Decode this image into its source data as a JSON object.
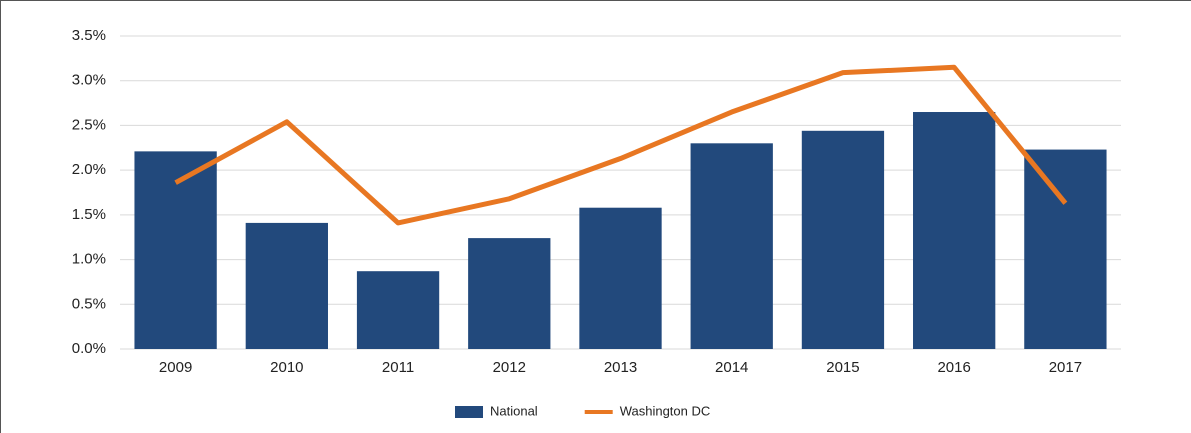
{
  "chart_data": {
    "type": "bar-line",
    "categories": [
      "2009",
      "2010",
      "2011",
      "2012",
      "2013",
      "2014",
      "2015",
      "2016",
      "2017"
    ],
    "series": [
      {
        "name": "National",
        "type": "bar",
        "color": "#22497c",
        "values": [
          2.21,
          1.41,
          0.87,
          1.24,
          1.58,
          2.3,
          2.44,
          2.65,
          2.23
        ]
      },
      {
        "name": "Washington DC",
        "type": "line",
        "color": "#e87722",
        "values": [
          1.86,
          2.54,
          1.41,
          1.68,
          2.13,
          2.65,
          3.09,
          3.15,
          1.63
        ]
      }
    ],
    "ylim": [
      0,
      3.5
    ],
    "yticks": [
      {
        "value": 0,
        "label": "0.0%"
      },
      {
        "value": 0.5,
        "label": "0.5%"
      },
      {
        "value": 1,
        "label": "1.0%"
      },
      {
        "value": 1.5,
        "label": "1.5%"
      },
      {
        "value": 2,
        "label": "2.0%"
      },
      {
        "value": 2.5,
        "label": "2.5%"
      },
      {
        "value": 3,
        "label": "3.0%"
      },
      {
        "value": 3.5,
        "label": "3.5%"
      }
    ],
    "grid": true,
    "legend": "bottom"
  }
}
